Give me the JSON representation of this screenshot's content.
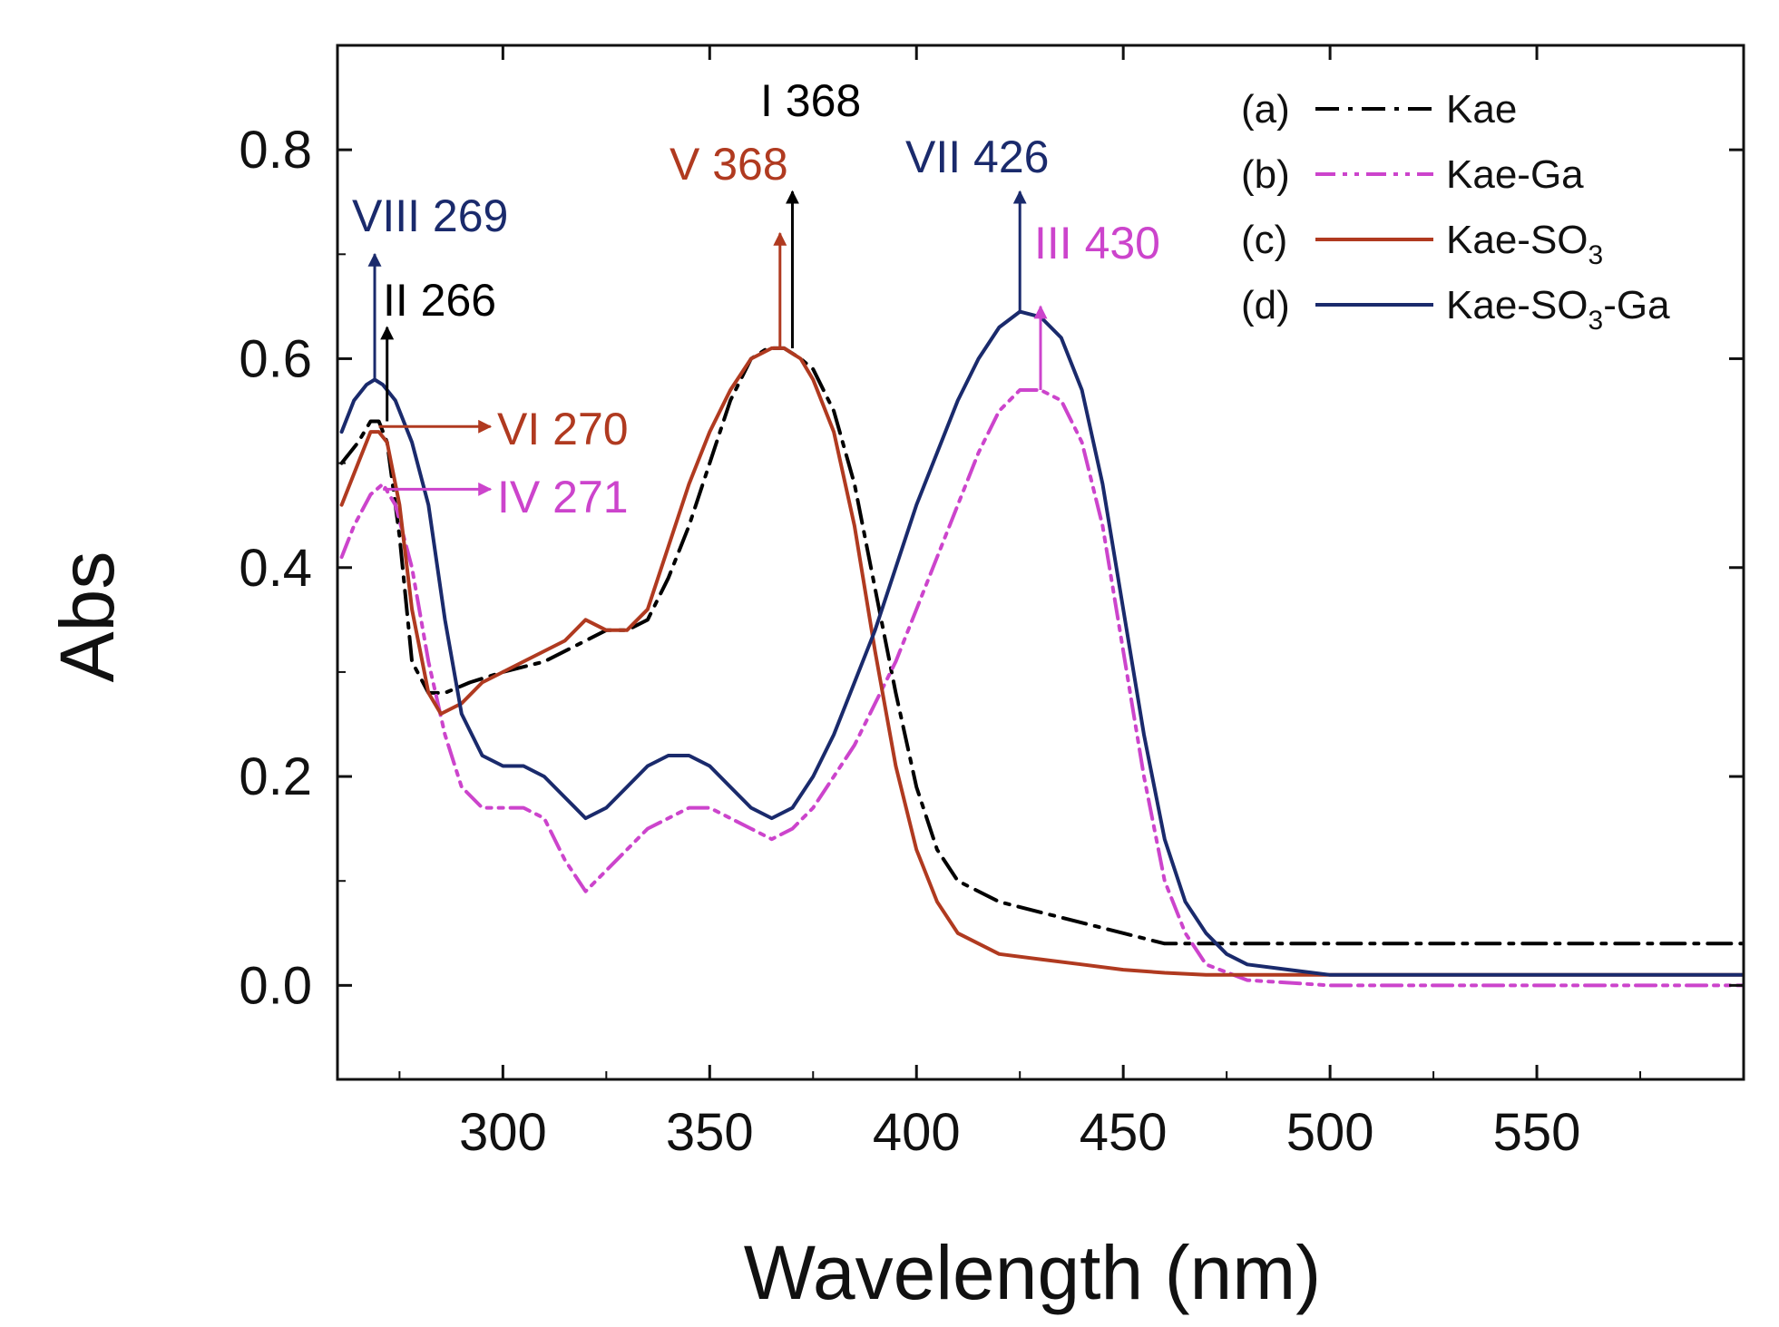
{
  "chart_data": {
    "type": "line",
    "title": "",
    "xlabel": "Wavelength (nm)",
    "ylabel": "Abs",
    "xlim": [
      260,
      600
    ],
    "ylim": [
      -0.09,
      0.9
    ],
    "xticks": [
      300,
      350,
      400,
      450,
      500,
      550
    ],
    "yticks": [
      0.0,
      0.2,
      0.4,
      0.6,
      0.8
    ],
    "xtick_labels": [
      "300",
      "350",
      "400",
      "450",
      "500",
      "550"
    ],
    "ytick_labels": [
      "0.0",
      "0.2",
      "0.4",
      "0.6",
      "0.8"
    ],
    "grid": false,
    "legend_position": "top-right",
    "series": [
      {
        "name": "Kae",
        "legend_prefix": "(a)",
        "legend_label": "Kae",
        "legend_sub": "",
        "legend_suffix": "",
        "color": "#000000",
        "dash": "dash-dot",
        "x": [
          261,
          265,
          268,
          270,
          272,
          275,
          278,
          282,
          286,
          292,
          300,
          310,
          320,
          325,
          330,
          335,
          340,
          345,
          350,
          355,
          360,
          364,
          368,
          372,
          375,
          380,
          385,
          390,
          395,
          400,
          405,
          410,
          420,
          430,
          440,
          450,
          460,
          470,
          480,
          500,
          550,
          600
        ],
        "y": [
          0.5,
          0.52,
          0.54,
          0.54,
          0.52,
          0.43,
          0.31,
          0.28,
          0.28,
          0.29,
          0.3,
          0.31,
          0.33,
          0.34,
          0.34,
          0.35,
          0.39,
          0.44,
          0.5,
          0.56,
          0.6,
          0.61,
          0.61,
          0.6,
          0.59,
          0.55,
          0.48,
          0.38,
          0.28,
          0.19,
          0.13,
          0.1,
          0.08,
          0.07,
          0.06,
          0.05,
          0.04,
          0.04,
          0.04,
          0.04,
          0.04,
          0.04
        ]
      },
      {
        "name": "Kae-Ga",
        "legend_prefix": "(b)",
        "legend_label": "Kae-Ga",
        "legend_sub": "",
        "legend_suffix": "",
        "color": "#cc44cc",
        "dash": "dash-dot-dot",
        "x": [
          261,
          264,
          268,
          271,
          274,
          278,
          282,
          286,
          290,
          295,
          300,
          305,
          310,
          315,
          320,
          325,
          330,
          335,
          340,
          345,
          350,
          355,
          360,
          365,
          370,
          375,
          380,
          385,
          390,
          395,
          400,
          405,
          410,
          415,
          420,
          425,
          430,
          435,
          440,
          445,
          450,
          455,
          460,
          465,
          470,
          480,
          500,
          550,
          600
        ],
        "y": [
          0.41,
          0.44,
          0.47,
          0.48,
          0.46,
          0.4,
          0.31,
          0.24,
          0.19,
          0.17,
          0.17,
          0.17,
          0.16,
          0.12,
          0.09,
          0.11,
          0.13,
          0.15,
          0.16,
          0.17,
          0.17,
          0.16,
          0.15,
          0.14,
          0.15,
          0.17,
          0.2,
          0.23,
          0.27,
          0.31,
          0.36,
          0.41,
          0.46,
          0.51,
          0.55,
          0.57,
          0.57,
          0.56,
          0.52,
          0.44,
          0.32,
          0.2,
          0.1,
          0.05,
          0.02,
          0.005,
          0.0,
          0.0,
          0.0
        ]
      },
      {
        "name": "Kae-SO3",
        "legend_prefix": "(c)",
        "legend_label": "Kae-SO",
        "legend_sub": "3",
        "legend_suffix": "",
        "color": "#b03a20",
        "dash": "solid",
        "x": [
          261,
          265,
          268,
          270,
          272,
          275,
          278,
          282,
          285,
          290,
          295,
          300,
          305,
          310,
          315,
          320,
          325,
          330,
          335,
          340,
          345,
          350,
          355,
          360,
          365,
          368,
          372,
          375,
          380,
          385,
          390,
          395,
          400,
          405,
          410,
          415,
          420,
          430,
          440,
          450,
          460,
          470,
          480,
          500,
          550,
          600
        ],
        "y": [
          0.46,
          0.5,
          0.53,
          0.53,
          0.52,
          0.46,
          0.36,
          0.28,
          0.26,
          0.27,
          0.29,
          0.3,
          0.31,
          0.32,
          0.33,
          0.35,
          0.34,
          0.34,
          0.36,
          0.42,
          0.48,
          0.53,
          0.57,
          0.6,
          0.61,
          0.61,
          0.6,
          0.58,
          0.53,
          0.44,
          0.32,
          0.21,
          0.13,
          0.08,
          0.05,
          0.04,
          0.03,
          0.025,
          0.02,
          0.015,
          0.012,
          0.01,
          0.01,
          0.01,
          0.01,
          0.01
        ]
      },
      {
        "name": "Kae-SO3-Ga",
        "legend_prefix": "(d)",
        "legend_label": "Kae-SO",
        "legend_sub": "3",
        "legend_suffix": "-Ga",
        "color": "#1a2a6c",
        "dash": "solid",
        "x": [
          261,
          264,
          267,
          269,
          271,
          274,
          278,
          282,
          286,
          290,
          295,
          300,
          305,
          310,
          315,
          320,
          325,
          330,
          335,
          340,
          345,
          350,
          355,
          360,
          365,
          370,
          375,
          380,
          385,
          390,
          395,
          400,
          405,
          410,
          415,
          420,
          425,
          430,
          435,
          440,
          445,
          450,
          455,
          460,
          465,
          470,
          475,
          480,
          490,
          500,
          550,
          600
        ],
        "y": [
          0.53,
          0.56,
          0.575,
          0.58,
          0.575,
          0.56,
          0.52,
          0.46,
          0.35,
          0.26,
          0.22,
          0.21,
          0.21,
          0.2,
          0.18,
          0.16,
          0.17,
          0.19,
          0.21,
          0.22,
          0.22,
          0.21,
          0.19,
          0.17,
          0.16,
          0.17,
          0.2,
          0.24,
          0.29,
          0.34,
          0.4,
          0.46,
          0.51,
          0.56,
          0.6,
          0.63,
          0.645,
          0.64,
          0.62,
          0.57,
          0.48,
          0.36,
          0.24,
          0.14,
          0.08,
          0.05,
          0.03,
          0.02,
          0.015,
          0.01,
          0.01,
          0.01
        ]
      }
    ],
    "annotations": [
      {
        "text": "VIII 269",
        "color": "#1a2a6c",
        "x": 269,
        "y_start": 0.58,
        "y_end": 0.7,
        "direction": "up"
      },
      {
        "text": "II 266",
        "color": "#000000",
        "x": 272,
        "y_start": 0.54,
        "y_end": 0.63,
        "direction": "up"
      },
      {
        "text": "I 368",
        "color": "#000000",
        "x": 370,
        "y_start": 0.61,
        "y_end": 0.76,
        "direction": "up"
      },
      {
        "text": "V 368",
        "color": "#b03a20",
        "x": 367,
        "y_start": 0.61,
        "y_end": 0.72,
        "direction": "up"
      },
      {
        "text": "VII 426",
        "color": "#1a2a6c",
        "x": 425,
        "y_start": 0.645,
        "y_end": 0.76,
        "direction": "up"
      },
      {
        "text": "III 430",
        "color": "#cc44cc",
        "x": 430,
        "y_start": 0.57,
        "y_end": 0.65,
        "direction": "up"
      },
      {
        "text": "VI 270",
        "color": "#b03a20",
        "x": 270,
        "x_end": 297,
        "y": 0.535,
        "direction": "right"
      },
      {
        "text": "IV 271",
        "color": "#cc44cc",
        "x": 271,
        "x_end": 297,
        "y": 0.475,
        "direction": "right"
      }
    ]
  }
}
